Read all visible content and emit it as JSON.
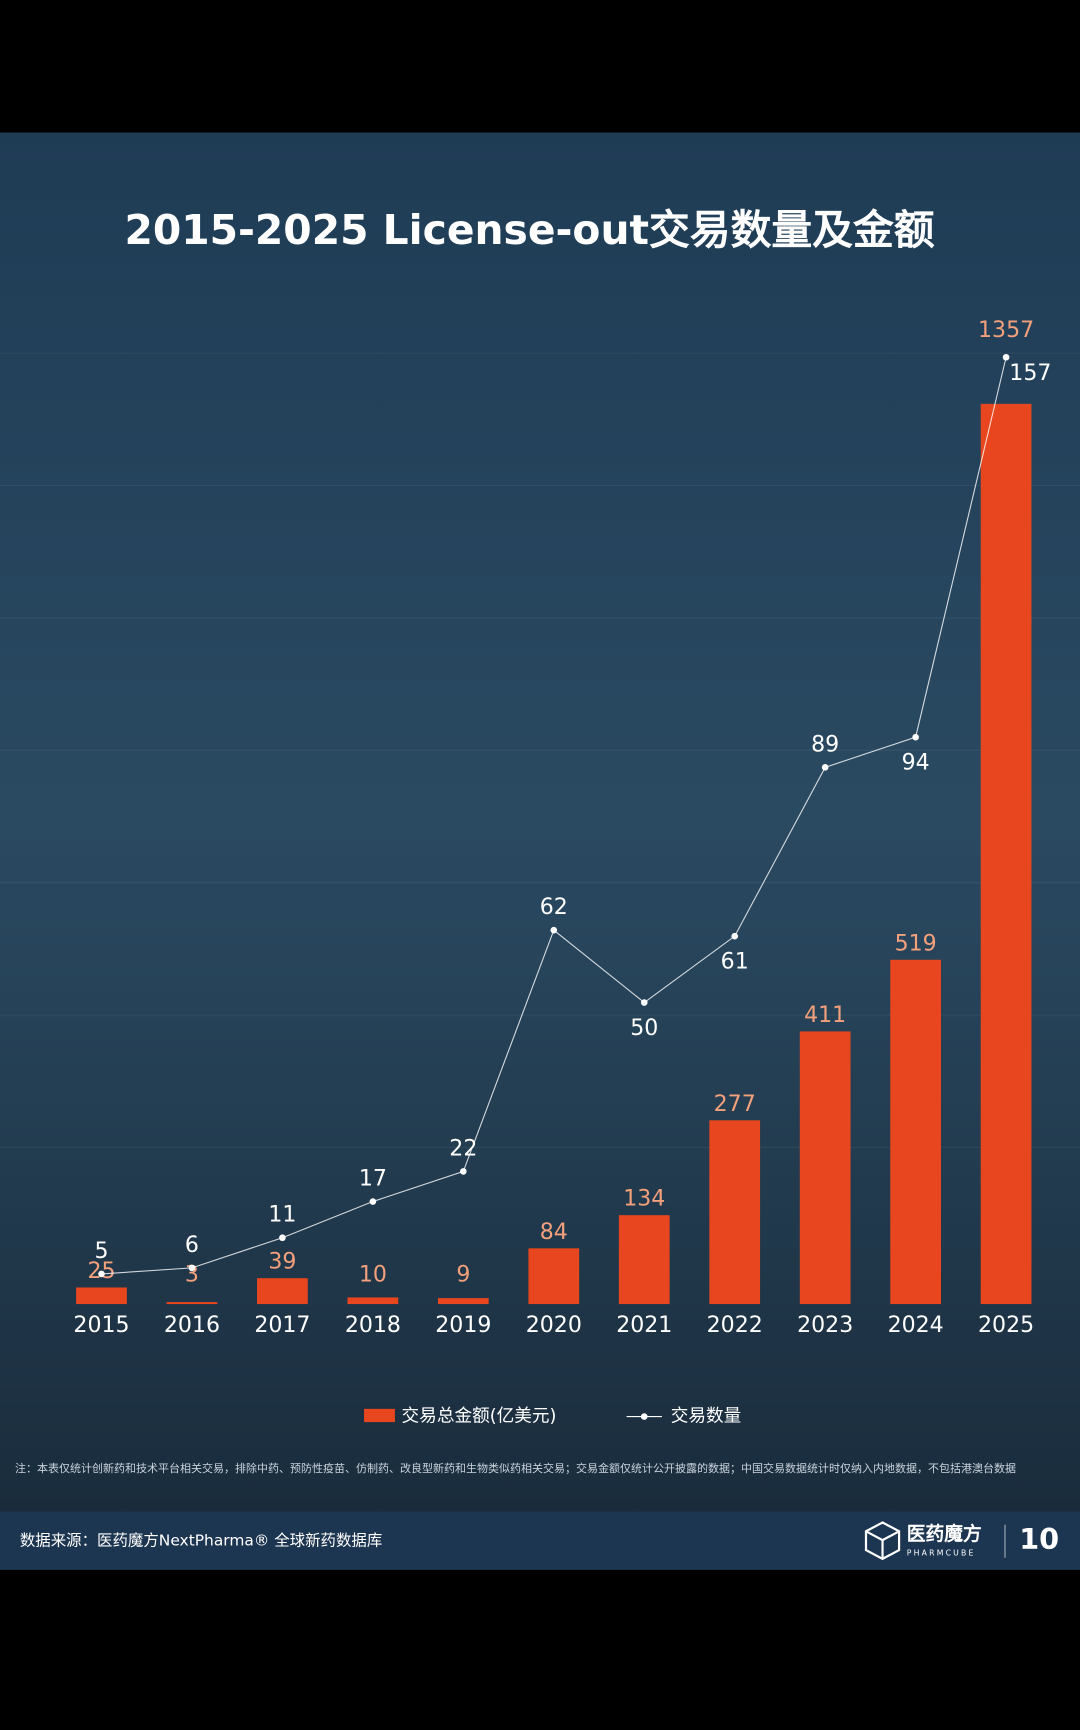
{
  "title": "2015-2025 License-out交易数量及金额",
  "chart_data": {
    "type": "bar-line",
    "categories": [
      "2015",
      "2016",
      "2017",
      "2018",
      "2019",
      "2020",
      "2021",
      "2022",
      "2023",
      "2024",
      "2025"
    ],
    "series": [
      {
        "name": "交易总金额(亿美元)",
        "color": "#e8461e",
        "values": [
          25,
          3,
          39,
          10,
          9,
          84,
          134,
          277,
          411,
          519,
          1357
        ]
      },
      {
        "name": "交易数量",
        "color": "#ffffff",
        "axis": "y2",
        "values": [
          5,
          6,
          11,
          17,
          22,
          62,
          50,
          61,
          89,
          94,
          157
        ]
      }
    ],
    "ylim": [
      0,
      1500
    ],
    "y2lim": [
      0,
      165
    ]
  },
  "note": "注：本表仅统计创新药和技术平台相关交易，排除中药、预防性疫苗、仿制药、改良型新药和生物类似药相关交易；交易金额仅统计公开披露的数据；中国交易数据统计时仅纳入内地数据，不包括港澳台数据",
  "footer": {
    "source": "数据来源：医药魔方NextPharma® 全球新药数据库",
    "brand": "医药魔方",
    "brand_en": "PHARMCUBE",
    "badge": "10"
  }
}
